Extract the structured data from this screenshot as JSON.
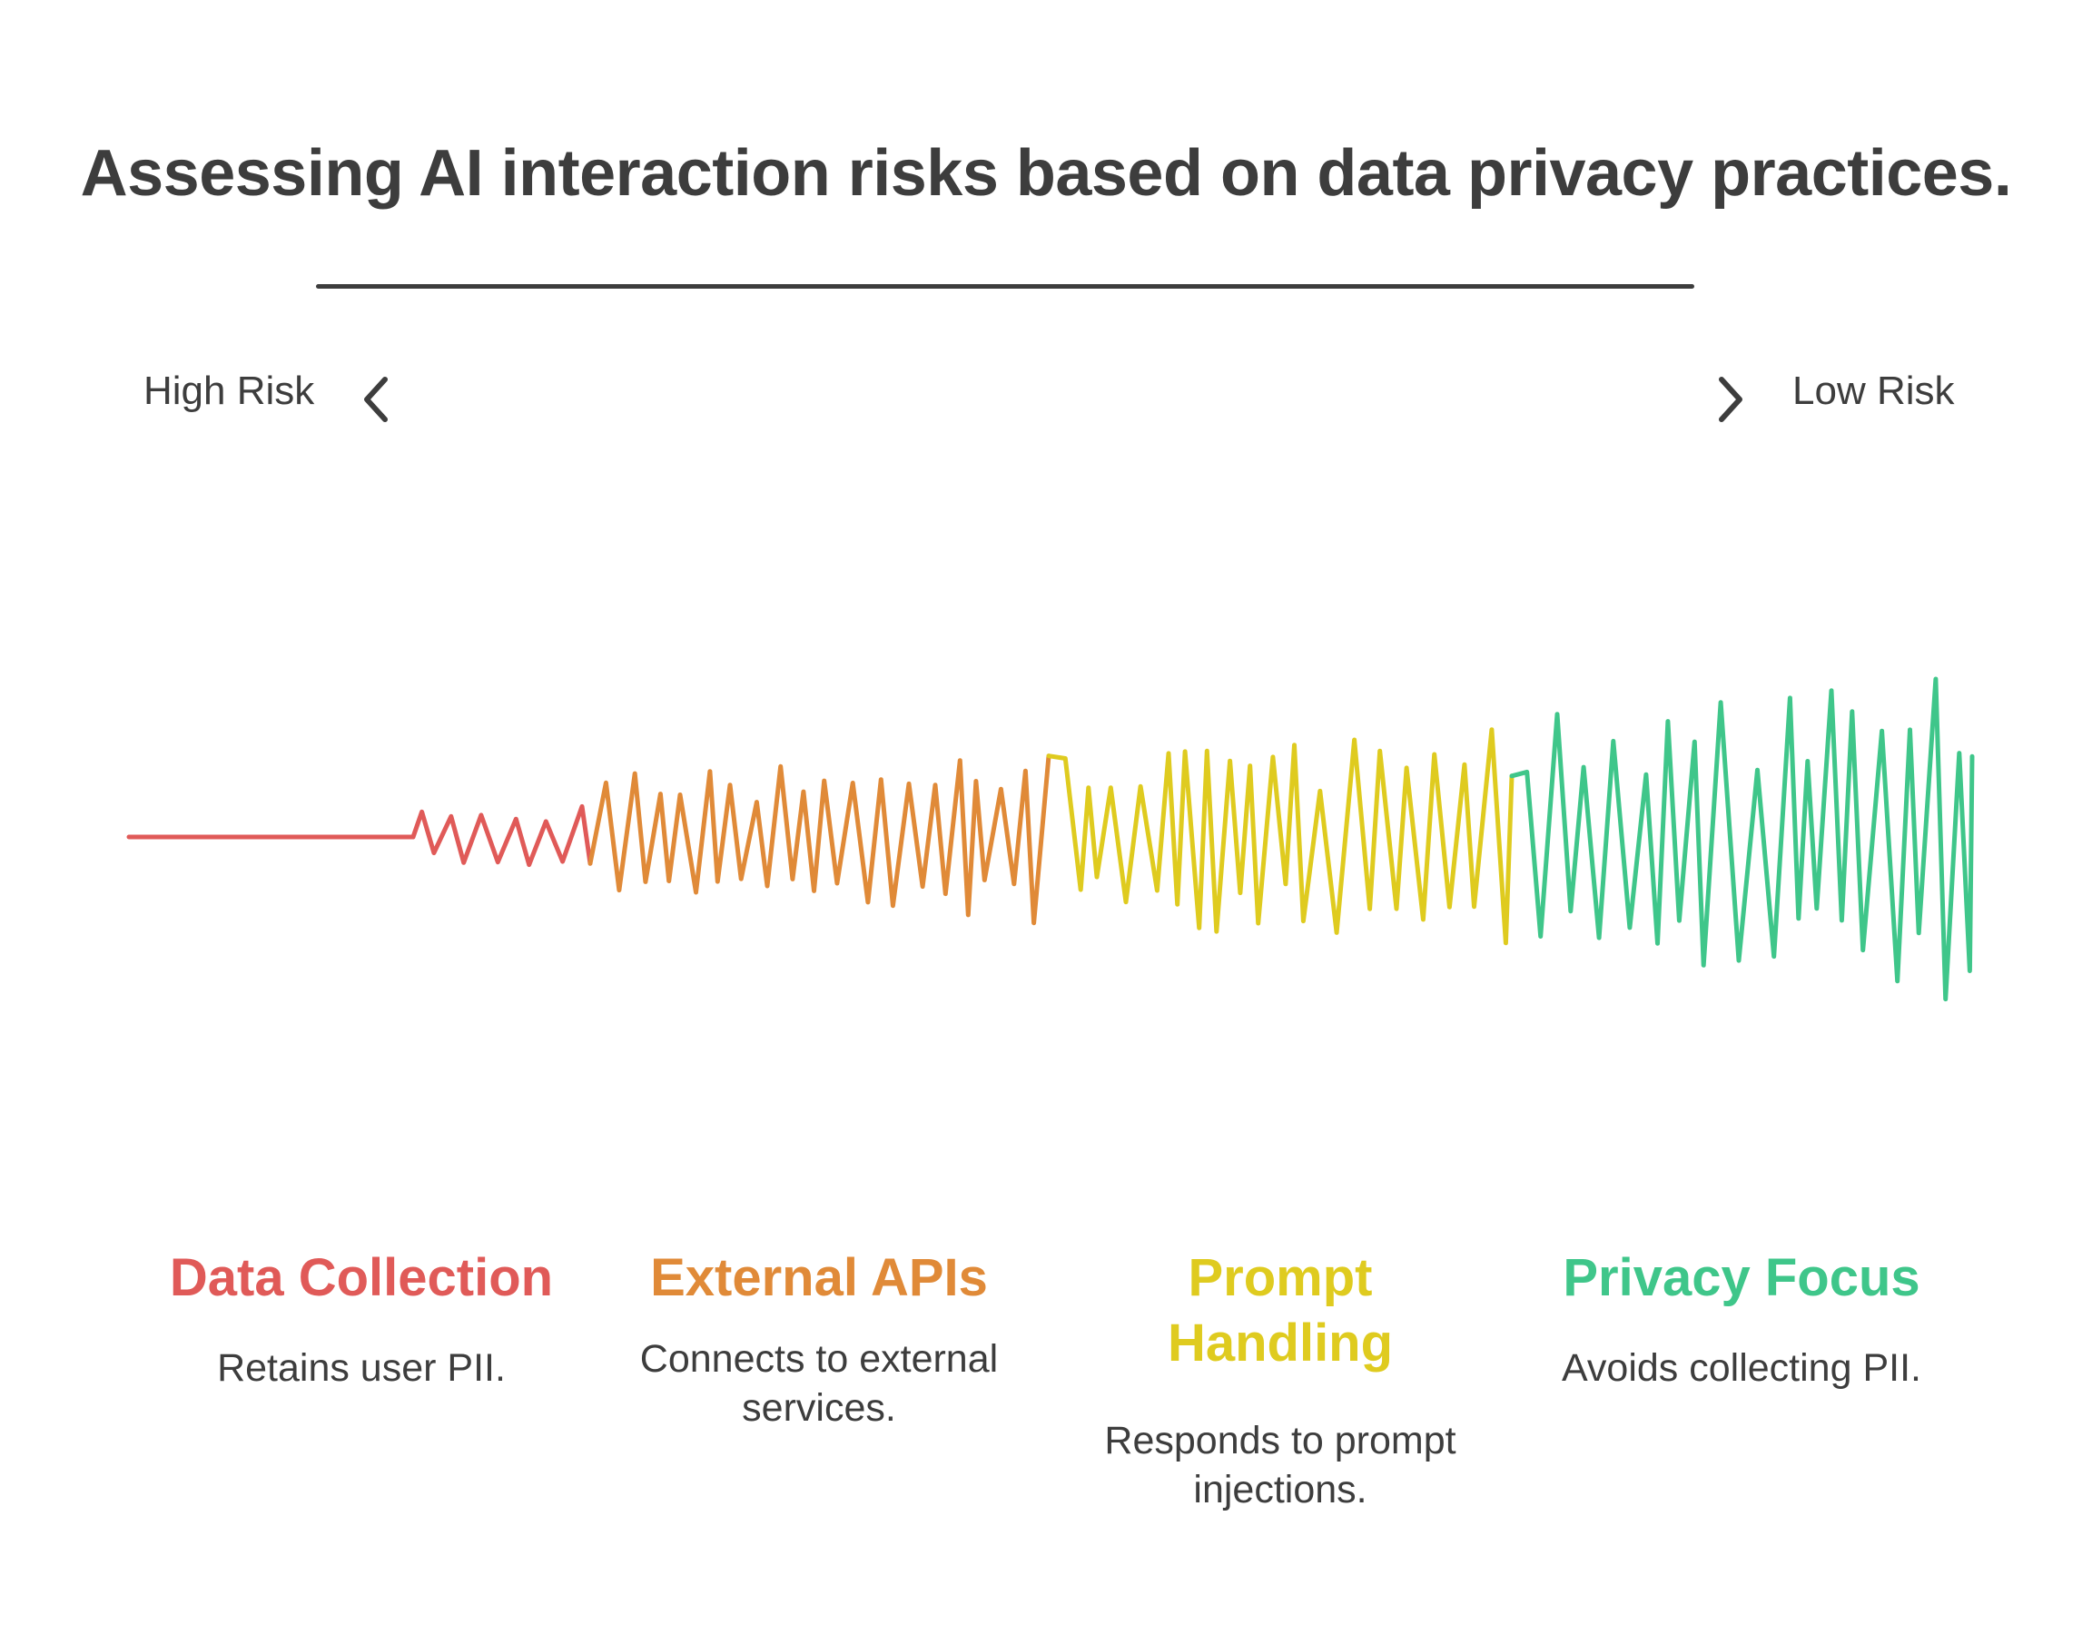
{
  "title": "Assessing AI interaction risks based on data privacy practices.",
  "scale": {
    "left_label": "High Risk",
    "right_label": "Low Risk",
    "left_icon": "chevron-left-icon",
    "right_icon": "chevron-right-icon"
  },
  "stages": [
    {
      "title": "Data Collection",
      "description": "Retains user PII.",
      "color": "#e05a58"
    },
    {
      "title": "External APIs",
      "description": "Connects to external services.",
      "color": "#e08a38"
    },
    {
      "title": "Prompt Handling",
      "description": "Responds to prompt injections.",
      "color": "#dfcb1f"
    },
    {
      "title": "Privacy Focus",
      "description": "Avoids collecting PII.",
      "color": "#3fc68a"
    }
  ],
  "colors": {
    "text": "#3d3d3d",
    "rule": "#3d3d3d",
    "background": "#ffffff"
  }
}
